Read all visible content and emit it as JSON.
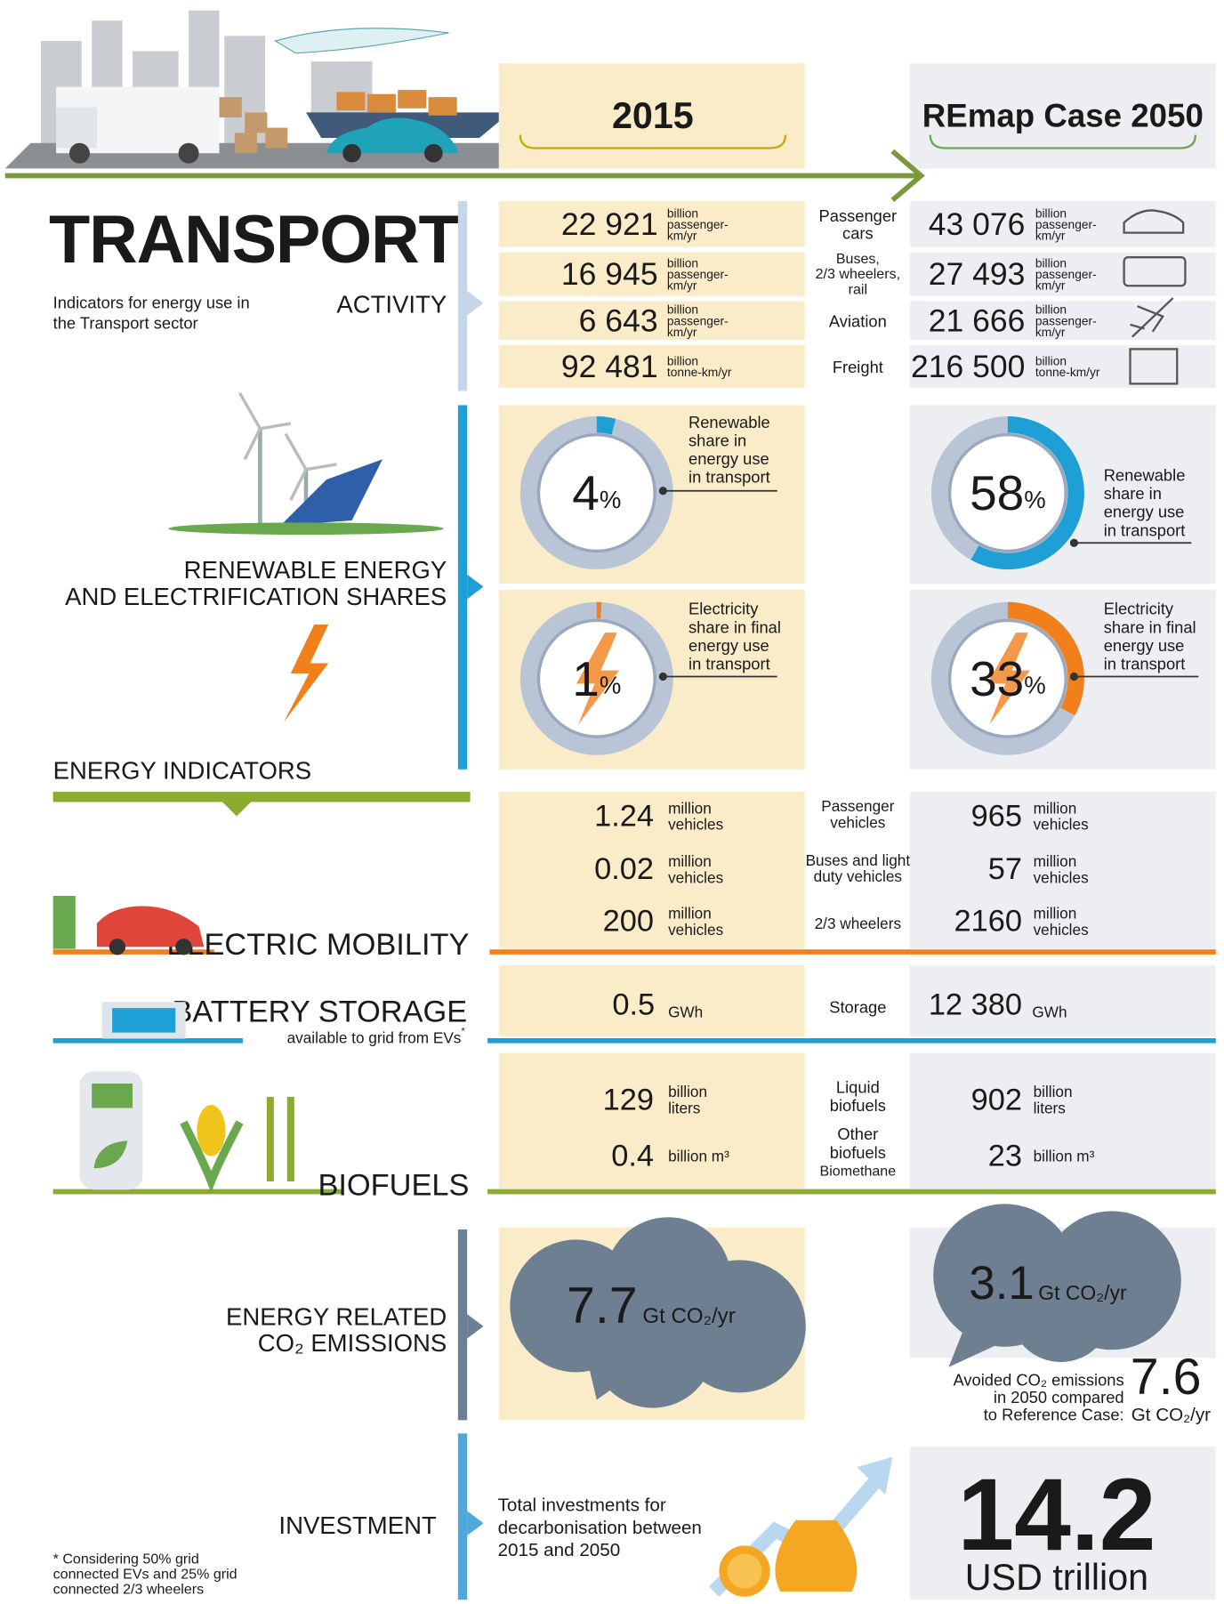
{
  "header": {
    "col_2015": "2015",
    "col_2050": "REmap Case 2050"
  },
  "title": "TRANSPORT",
  "subtitle": [
    "Indicators for energy use in",
    "the Transport sector"
  ],
  "activity": {
    "label": "ACTIVITY",
    "rows": [
      {
        "label": [
          "Passenger",
          "cars"
        ],
        "v2015": "22 921",
        "v2050": "43 076",
        "unit": [
          "billion",
          "passenger-",
          "km/yr"
        ]
      },
      {
        "label": [
          "Buses,",
          "2/3 wheelers,",
          "rail"
        ],
        "v2015": "16 945",
        "v2050": "27 493",
        "unit": [
          "billion",
          "passenger-",
          "km/yr"
        ]
      },
      {
        "label": [
          "Aviation"
        ],
        "v2015": "6 643",
        "v2050": "21 666",
        "unit": [
          "billion",
          "passenger-",
          "km/yr"
        ]
      },
      {
        "label": [
          "Freight"
        ],
        "v2015": "92 481",
        "v2050": "216 500",
        "unit": [
          "billion",
          "tonne-km/yr"
        ]
      }
    ]
  },
  "shares": {
    "label": [
      "RENEWABLE ENERGY",
      "AND ELECTRIFICATION SHARES"
    ],
    "unit": "%",
    "renewable": {
      "caption": [
        "Renewable",
        "share in",
        "energy use",
        "in transport"
      ],
      "v2015": 4,
      "v2050": 58
    },
    "electricity": {
      "caption": [
        "Electricity",
        "share in final",
        "energy use",
        "in transport"
      ],
      "v2015": 1,
      "v2050": 33
    }
  },
  "energy_indicators": "ENERGY INDICATORS",
  "electric_mobility": {
    "label": "ELECTRIC MOBILITY",
    "rows": [
      {
        "label": [
          "Passenger",
          "vehicles"
        ],
        "v2015": "1.24",
        "v2050": "965",
        "unit": [
          "million",
          "vehicles"
        ]
      },
      {
        "label": [
          "Buses and light",
          "duty vehicles"
        ],
        "v2015": "0.02",
        "v2050": "57",
        "unit": [
          "million",
          "vehicles"
        ]
      },
      {
        "label": [
          "2/3 wheelers"
        ],
        "v2015": "200",
        "v2050": "2160",
        "unit": [
          "million",
          "vehicles"
        ]
      }
    ]
  },
  "battery": {
    "label": "BATTERY STORAGE",
    "note": "available to grid from EVs",
    "note_mark": "*",
    "row": {
      "label": "Storage",
      "v2015": "0.5",
      "v2050": "12 380",
      "unit": "GWh"
    }
  },
  "biofuels": {
    "label": "BIOFUELS",
    "rows": [
      {
        "label": [
          "Liquid",
          "biofuels"
        ],
        "v2015": "129",
        "v2050": "902",
        "unit": [
          "billion",
          "liters"
        ]
      },
      {
        "label": [
          "Other",
          "biofuels"
        ],
        "sublabel": "Biomethane",
        "v2015": "0.4",
        "v2050": "23",
        "unit": [
          "billion m³"
        ]
      }
    ]
  },
  "emissions": {
    "label": [
      "ENERGY RELATED",
      "CO₂ EMISSIONS"
    ],
    "v2015": "7.7",
    "v2050": "3.1",
    "unit": "Gt CO₂/yr",
    "avoided": {
      "text": [
        "Avoided CO₂ emissions",
        "in 2050 compared",
        "to Reference Case:"
      ],
      "value": "7.6",
      "unit": "Gt CO₂/yr"
    }
  },
  "investment": {
    "label": "INVESTMENT",
    "text": [
      "Total investments for",
      "decarbonisation between",
      "2015 and 2050"
    ],
    "value": "14.2",
    "unit": "USD trillion"
  },
  "footnote": [
    "* Considering 50% grid",
    "connected EVs and 25% grid",
    "connected 2/3 wheelers"
  ]
}
